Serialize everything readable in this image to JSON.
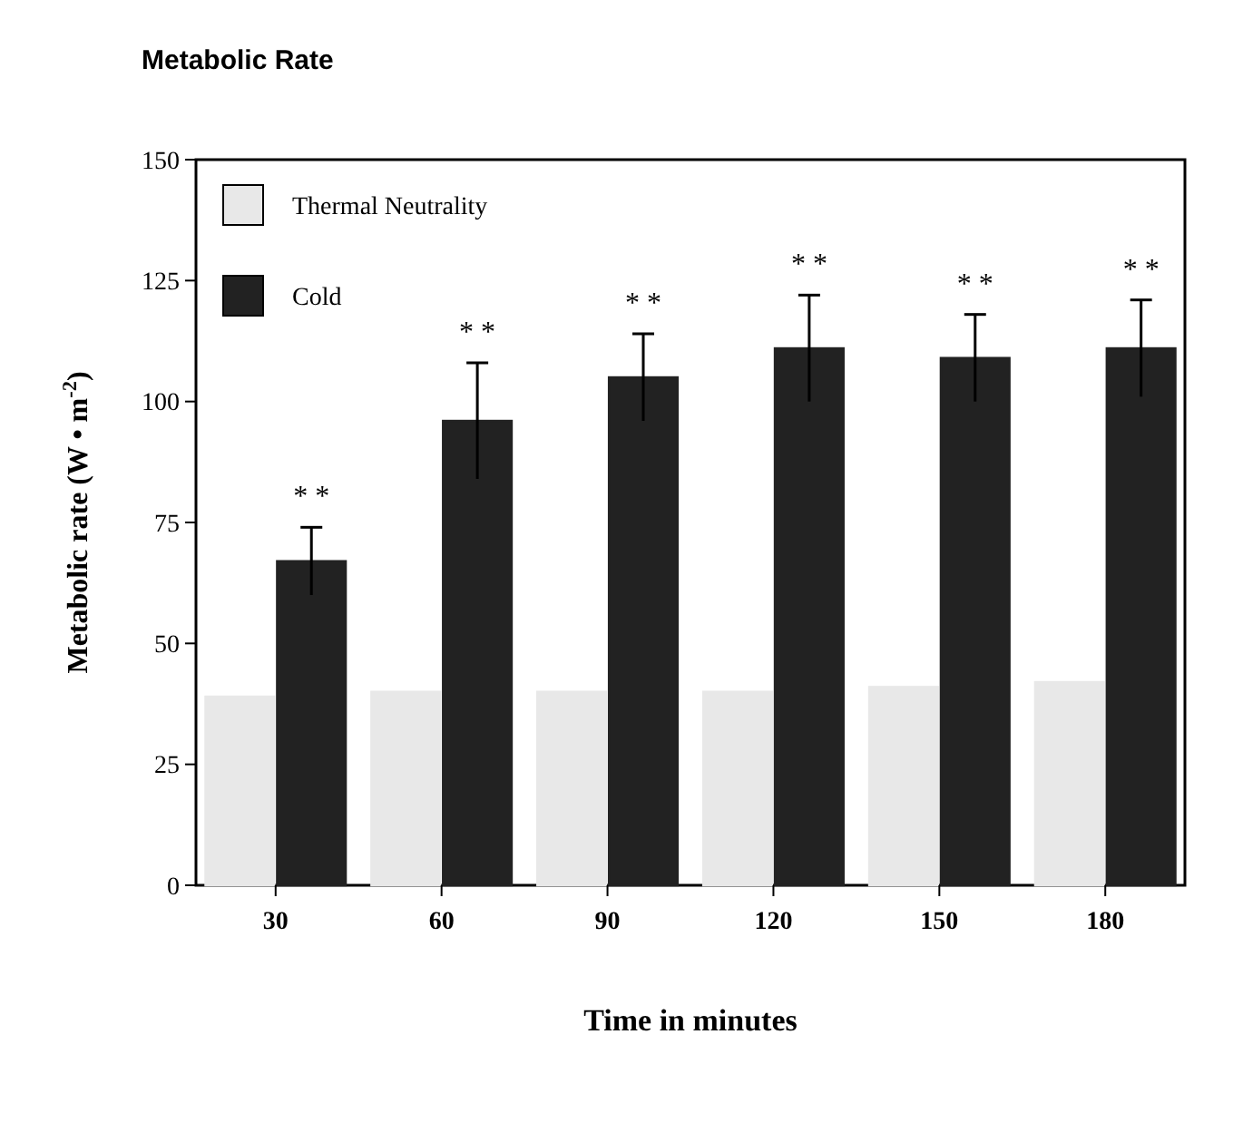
{
  "chart_data": {
    "type": "bar",
    "title": "Metabolic Rate",
    "xlabel": "Time in minutes",
    "ylabel": "Metabolic rate (W • m$^{-2}$)",
    "categories": [
      "30",
      "60",
      "90",
      "120",
      "150",
      "180"
    ],
    "series": [
      {
        "name": "Thermal Neutrality",
        "color": "#e8e8e8",
        "values": [
          39,
          40,
          40,
          40,
          41,
          42
        ]
      },
      {
        "name": "Cold",
        "color": "#222222",
        "values": [
          67,
          96,
          105,
          111,
          109,
          111
        ],
        "errors": [
          7,
          12,
          9,
          11,
          9,
          10
        ]
      }
    ],
    "ylim": [
      0,
      150
    ],
    "yticks": [
      0,
      25,
      50,
      75,
      100,
      125,
      150
    ],
    "grid": false,
    "legend": "top left",
    "annotations": [
      "* *",
      "* *",
      "* *",
      "* *",
      "* *",
      "* *"
    ]
  }
}
